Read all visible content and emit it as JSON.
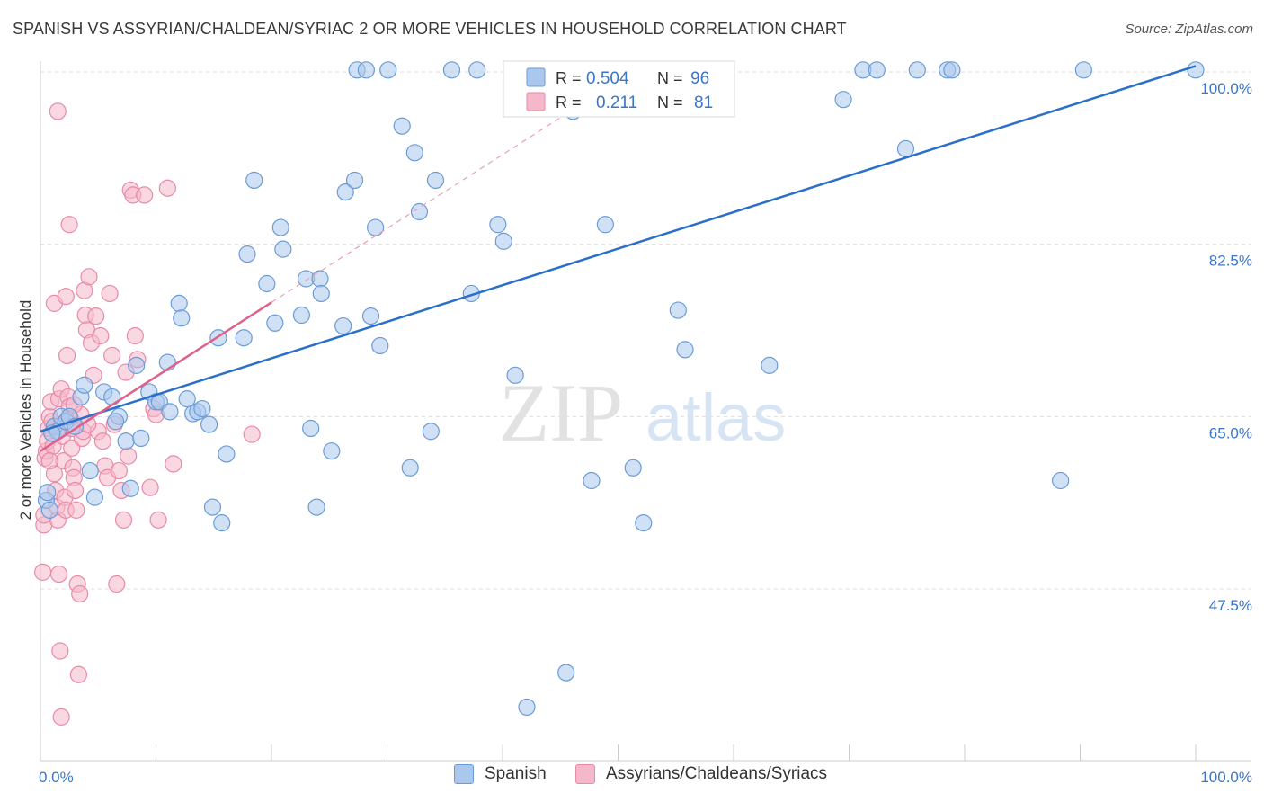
{
  "title": "SPANISH VS ASSYRIAN/CHALDEAN/SYRIAC 2 OR MORE VEHICLES IN HOUSEHOLD CORRELATION CHART",
  "source": "Source: ZipAtlas.com",
  "watermark": {
    "zip": "ZIP",
    "atlas": "atlas"
  },
  "colors": {
    "blue_fill": "#aac8ee",
    "blue_stroke": "#6b9bd6",
    "blue_line": "#2b6fc9",
    "pink_fill": "#f5b8cb",
    "pink_stroke": "#e88aa8",
    "pink_line": "#e0608a",
    "axis_text": "#3b76c9",
    "grid": "#dddddd"
  },
  "legend_top": {
    "rows": [
      {
        "r_label": "R = ",
        "r_value": "0.504",
        "n_label": "N = ",
        "n_value": "96"
      },
      {
        "r_label": "R = ",
        "r_value": "0.211",
        "n_label": "N = ",
        "n_value": "81"
      }
    ]
  },
  "legend_bottom": {
    "series": [
      "Spanish",
      "Assyrians/Chaldeans/Syriacs"
    ]
  },
  "chart_data": {
    "type": "scatter",
    "title": "SPANISH VS ASSYRIAN/CHALDEAN/SYRIAC 2 OR MORE VEHICLES IN HOUSEHOLD CORRELATION CHART",
    "xlabel": "",
    "ylabel": "2 or more Vehicles in Household",
    "xlim": [
      0,
      100
    ],
    "ylim": [
      32,
      102
    ],
    "x_tick_labels": [
      "0.0%",
      "100.0%"
    ],
    "y_ticks": [
      47.5,
      65.0,
      82.5,
      100.0
    ],
    "y_tick_labels": [
      "47.5%",
      "65.0%",
      "82.5%",
      "100.0%"
    ],
    "series": [
      {
        "name": "Spanish",
        "color": "blue",
        "R": 0.504,
        "N": 96,
        "trend": {
          "x": [
            0,
            100
          ],
          "y": [
            63.5,
            100.6
          ],
          "dashed": false
        },
        "points": [
          [
            0.5,
            56.5
          ],
          [
            0.8,
            55.5
          ],
          [
            1.2,
            64
          ],
          [
            1.5,
            63.5
          ],
          [
            1.8,
            65
          ],
          [
            2.2,
            64.5
          ],
          [
            2.5,
            65
          ],
          [
            3,
            64
          ],
          [
            3.5,
            67
          ],
          [
            3.8,
            68.2
          ],
          [
            4.3,
            59.5
          ],
          [
            4.7,
            56.8
          ],
          [
            5.5,
            67.5
          ],
          [
            6.2,
            67
          ],
          [
            6.8,
            65
          ],
          [
            7.4,
            62.5
          ],
          [
            7.8,
            57.7
          ],
          [
            8.3,
            70.2
          ],
          [
            8.7,
            62.8
          ],
          [
            9.4,
            67.5
          ],
          [
            10,
            66.5
          ],
          [
            10.3,
            66.5
          ],
          [
            11,
            70.5
          ],
          [
            11.2,
            65.5
          ],
          [
            12,
            76.5
          ],
          [
            12.2,
            75
          ],
          [
            12.7,
            66.8
          ],
          [
            13.2,
            65.3
          ],
          [
            13.6,
            65.5
          ],
          [
            14,
            65.8
          ],
          [
            14.6,
            64.2
          ],
          [
            14.9,
            55.8
          ],
          [
            15.4,
            73
          ],
          [
            15.7,
            54.2
          ],
          [
            16.1,
            61.2
          ],
          [
            17.6,
            73
          ],
          [
            17.9,
            81.5
          ],
          [
            18.5,
            89
          ],
          [
            19.6,
            78.5
          ],
          [
            20.3,
            74.5
          ],
          [
            20.8,
            84.2
          ],
          [
            21,
            82
          ],
          [
            22.6,
            75.3
          ],
          [
            23,
            79
          ],
          [
            23.4,
            63.8
          ],
          [
            23.9,
            55.8
          ],
          [
            24.2,
            79
          ],
          [
            24.3,
            77.5
          ],
          [
            25.2,
            61.5
          ],
          [
            26.2,
            74.2
          ],
          [
            26.4,
            87.8
          ],
          [
            27.2,
            89
          ],
          [
            27.4,
            100.2
          ],
          [
            28.2,
            100.2
          ],
          [
            28.6,
            75.2
          ],
          [
            29,
            84.2
          ],
          [
            29.4,
            72.2
          ],
          [
            30.1,
            100.2
          ],
          [
            31.3,
            94.5
          ],
          [
            32,
            59.8
          ],
          [
            32.4,
            91.8
          ],
          [
            32.8,
            85.8
          ],
          [
            33.8,
            63.5
          ],
          [
            34.2,
            89
          ],
          [
            35.6,
            100.2
          ],
          [
            37.3,
            77.5
          ],
          [
            37.8,
            100.2
          ],
          [
            39.6,
            84.5
          ],
          [
            40.1,
            82.8
          ],
          [
            41.1,
            69.2
          ],
          [
            42.1,
            35.5
          ],
          [
            45.5,
            39
          ],
          [
            46.1,
            96
          ],
          [
            47.7,
            58.5
          ],
          [
            48.5,
            100.2
          ],
          [
            48.9,
            84.5
          ],
          [
            51.1,
            100.2
          ],
          [
            51.3,
            59.8
          ],
          [
            52.2,
            54.2
          ],
          [
            55.2,
            75.8
          ],
          [
            55.8,
            71.8
          ],
          [
            56.7,
            100.2
          ],
          [
            63.1,
            70.2
          ],
          [
            69.5,
            97.2
          ],
          [
            71.2,
            100.2
          ],
          [
            72.4,
            100.2
          ],
          [
            74.9,
            92.2
          ],
          [
            75.9,
            100.2
          ],
          [
            78.5,
            100.2
          ],
          [
            78.9,
            100.2
          ],
          [
            88.3,
            58.5
          ],
          [
            90.3,
            100.2
          ],
          [
            100,
            100.2
          ],
          [
            1,
            63.3
          ],
          [
            6.5,
            64.5
          ],
          [
            0.6,
            57.3
          ]
        ]
      },
      {
        "name": "Assyrians/Chaldeans/Syriacs",
        "color": "pink",
        "R": 0.211,
        "N": 81,
        "trend": {
          "x": [
            0,
            20
          ],
          "y": [
            61.5,
            76.6
          ],
          "dashed": false
        },
        "trend_extension": {
          "x": [
            20,
            50
          ],
          "y": [
            76.6,
            99.1
          ],
          "dashed": true
        },
        "points": [
          [
            0.2,
            49.2
          ],
          [
            0.3,
            54
          ],
          [
            0.4,
            60.8
          ],
          [
            0.5,
            61.5
          ],
          [
            0.6,
            62.5
          ],
          [
            0.7,
            63.8
          ],
          [
            0.8,
            65
          ],
          [
            0.9,
            66.5
          ],
          [
            1,
            64.5
          ],
          [
            1.1,
            62
          ],
          [
            1.2,
            59.2
          ],
          [
            1.3,
            57.5
          ],
          [
            1.4,
            55.8
          ],
          [
            1.5,
            54.5
          ],
          [
            1.6,
            66.8
          ],
          [
            1.7,
            64
          ],
          [
            1.8,
            67.8
          ],
          [
            1.9,
            63
          ],
          [
            2,
            60.5
          ],
          [
            2.1,
            56.8
          ],
          [
            2.2,
            55.5
          ],
          [
            2.3,
            71.2
          ],
          [
            2.4,
            67
          ],
          [
            2.5,
            66
          ],
          [
            2.6,
            64.8
          ],
          [
            2.7,
            61.8
          ],
          [
            2.8,
            59.8
          ],
          [
            2.9,
            58.8
          ],
          [
            3,
            57.5
          ],
          [
            3.1,
            55.5
          ],
          [
            3.2,
            48
          ],
          [
            3.3,
            38.8
          ],
          [
            3.4,
            47
          ],
          [
            3.5,
            65.2
          ],
          [
            3.6,
            62.8
          ],
          [
            3.7,
            63.5
          ],
          [
            3.8,
            77.8
          ],
          [
            3.9,
            75.3
          ],
          [
            4,
            73.8
          ],
          [
            4.2,
            79.2
          ],
          [
            4.4,
            72.5
          ],
          [
            4.6,
            69.2
          ],
          [
            4.8,
            75.2
          ],
          [
            5,
            63.5
          ],
          [
            5.2,
            73.2
          ],
          [
            5.4,
            62.5
          ],
          [
            5.6,
            60
          ],
          [
            5.8,
            58.8
          ],
          [
            6,
            77.5
          ],
          [
            6.2,
            71.2
          ],
          [
            6.4,
            64.2
          ],
          [
            6.6,
            48
          ],
          [
            6.8,
            59.5
          ],
          [
            7,
            57.5
          ],
          [
            7.2,
            54.5
          ],
          [
            7.4,
            69.5
          ],
          [
            7.6,
            61
          ],
          [
            7.8,
            88
          ],
          [
            8,
            87.5
          ],
          [
            8.2,
            73.2
          ],
          [
            8.4,
            70.8
          ],
          [
            9,
            87.5
          ],
          [
            9.5,
            57.8
          ],
          [
            9.8,
            65.8
          ],
          [
            10,
            65.2
          ],
          [
            10.2,
            54.5
          ],
          [
            11,
            88.2
          ],
          [
            11.5,
            60.2
          ],
          [
            18.3,
            63.2
          ],
          [
            1.5,
            96
          ],
          [
            2.5,
            84.5
          ],
          [
            1.7,
            41.2
          ],
          [
            1.8,
            34.5
          ],
          [
            2.7,
            63.8
          ],
          [
            2.9,
            66.2
          ],
          [
            1.2,
            76.5
          ],
          [
            0.8,
            60.5
          ],
          [
            0.3,
            55
          ],
          [
            4.1,
            64.2
          ],
          [
            2.2,
            77.2
          ],
          [
            1.6,
            49
          ]
        ]
      }
    ]
  }
}
